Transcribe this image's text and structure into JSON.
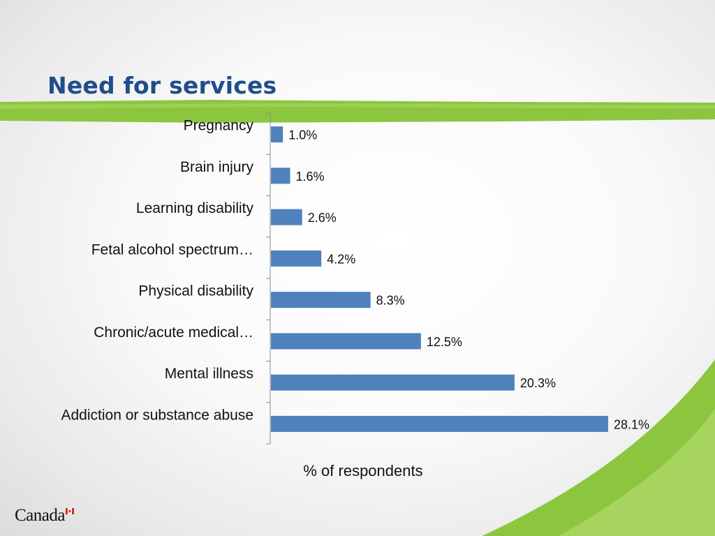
{
  "slide": {
    "title": "Need for services",
    "wordmark": "Canada"
  },
  "colors": {
    "title": "#1f4e8c",
    "bar": "#4f81bd",
    "accent_green": "#8cc63f",
    "flag_red": "#d52b1e"
  },
  "chart_data": {
    "type": "bar",
    "orientation": "horizontal",
    "categories": [
      "Pregnancy",
      "Brain injury",
      "Learning disability",
      "Fetal alcohol spectrum…",
      "Physical disability",
      "Chronic/acute medical…",
      "Mental illness",
      "Addiction or substance abuse"
    ],
    "values": [
      1.0,
      1.6,
      2.6,
      4.2,
      8.3,
      12.5,
      20.3,
      28.1
    ],
    "value_labels": [
      "1.0%",
      "1.6%",
      "2.6%",
      "4.2%",
      "8.3%",
      "12.5%",
      "20.3%",
      "28.1%"
    ],
    "xlabel": "% of respondents",
    "ylabel": "",
    "xlim": [
      0,
      28.1
    ],
    "grid": false,
    "legend": "none"
  }
}
